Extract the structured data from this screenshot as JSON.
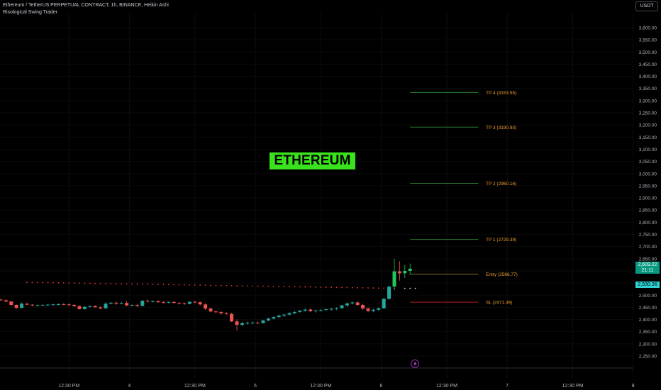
{
  "header": {
    "symbol_line": "Ethereum / TetherUS PERPETUAL CONTRACT, 1h, BINANCE, Heikin Ashi",
    "indicator": "Risological Swing Trader"
  },
  "currency_label": "USDT",
  "watermark": "ETHEREUM",
  "price_tags": {
    "last_price": "2,609.22",
    "countdown": "21:11",
    "secondary_price": "2,530.36"
  },
  "colors": {
    "background": "#000000",
    "bull": "#26a69a",
    "bull_bright": "#22c55e",
    "bear": "#ef5350",
    "target_line": "#2e7d32",
    "stop_line": "#b71c1c",
    "label_orange": "#f0a030",
    "watermark_bg": "#39e21d",
    "dots_red": "#e53935"
  },
  "bottom_icon": "lightning-icon",
  "chart_data": {
    "type": "candlestick",
    "title": "",
    "y_axis": {
      "ticks": [
        2250,
        2300,
        2350,
        2400,
        2450,
        2500,
        2550,
        2600,
        2650,
        2700,
        2750,
        2800,
        2850,
        2900,
        2950,
        3000,
        3050,
        3100,
        3150,
        3200,
        3250,
        3300,
        3350,
        3400,
        3450,
        3500,
        3550,
        3600
      ],
      "tick_labels": [
        "2,250.00",
        "2,300.00",
        "2,350.00",
        "2,400.00",
        "2,450.00",
        "2,500.00",
        "2,550.00",
        "2,600.00",
        "2,650.00",
        "2,700.00",
        "2,750.00",
        "2,800.00",
        "2,850.00",
        "2,900.00",
        "2,950.00",
        "3,000.00",
        "3,050.00",
        "3,100.00",
        "3,150.00",
        "3,200.00",
        "3,250.00",
        "3,300.00",
        "3,350.00",
        "3,400.00",
        "3,450.00",
        "3,500.00",
        "3,550.00",
        "3,600.00"
      ],
      "range": [
        2210,
        3640
      ]
    },
    "x_axis": {
      "tick_labels": [
        "12:30 PM",
        "4",
        "12:30 PM",
        "5",
        "12:30 PM",
        "6",
        "12:30 PM",
        "7",
        "12:30 PM",
        "8"
      ],
      "tick_hours": [
        -62,
        -50.5,
        -38,
        -26.5,
        -14,
        -2.5,
        10,
        21.5,
        34,
        45.5
      ]
    },
    "levels": [
      {
        "label": "TP 4 (3333.55)",
        "value": 3333.55,
        "kind": "target"
      },
      {
        "label": "TP 3 (3190.93)",
        "value": 3190.93,
        "kind": "target"
      },
      {
        "label": "TP 2 (2960.16)",
        "value": 2960.16,
        "kind": "target"
      },
      {
        "label": "TP 1 (2729.39)",
        "value": 2729.39,
        "kind": "target"
      },
      {
        "label": "Entry (2586.77)",
        "value": 2586.77,
        "kind": "entry"
      },
      {
        "label": "SL (2471.39)",
        "value": 2471.39,
        "kind": "stop"
      }
    ],
    "levels_start_hour": 3,
    "levels_end_hour": 16,
    "candles": [
      [
        2492,
        2494,
        2486,
        2490
      ],
      [
        2490,
        2493,
        2485,
        2488
      ],
      [
        2488,
        2491,
        2483,
        2486
      ],
      [
        2486,
        2489,
        2480,
        2484
      ],
      [
        2484,
        2487,
        2479,
        2482
      ],
      [
        2482,
        2485,
        2476,
        2479
      ],
      [
        2479,
        2482,
        2470,
        2474
      ],
      [
        2474,
        2476,
        2455,
        2460
      ],
      [
        2460,
        2462,
        2443,
        2448
      ],
      [
        2448,
        2470,
        2445,
        2465
      ],
      [
        2465,
        2468,
        2458,
        2461
      ],
      [
        2461,
        2464,
        2455,
        2458
      ],
      [
        2458,
        2462,
        2454,
        2459
      ],
      [
        2459,
        2463,
        2455,
        2460
      ],
      [
        2460,
        2464,
        2456,
        2461
      ],
      [
        2461,
        2465,
        2457,
        2462
      ],
      [
        2462,
        2466,
        2458,
        2463
      ],
      [
        2463,
        2467,
        2459,
        2462
      ],
      [
        2462,
        2466,
        2455,
        2460
      ],
      [
        2460,
        2463,
        2452,
        2455
      ],
      [
        2455,
        2458,
        2440,
        2443
      ],
      [
        2443,
        2455,
        2440,
        2452
      ],
      [
        2452,
        2458,
        2448,
        2455
      ],
      [
        2455,
        2459,
        2449,
        2450
      ],
      [
        2450,
        2454,
        2442,
        2446
      ],
      [
        2446,
        2470,
        2444,
        2465
      ],
      [
        2465,
        2472,
        2462,
        2469
      ],
      [
        2469,
        2474,
        2460,
        2465
      ],
      [
        2465,
        2472,
        2462,
        2468
      ],
      [
        2468,
        2476,
        2455,
        2458
      ],
      [
        2458,
        2462,
        2454,
        2460
      ],
      [
        2460,
        2464,
        2452,
        2456
      ],
      [
        2456,
        2480,
        2454,
        2477
      ],
      [
        2477,
        2482,
        2470,
        2474
      ],
      [
        2474,
        2478,
        2470,
        2475
      ],
      [
        2475,
        2479,
        2468,
        2471
      ],
      [
        2471,
        2476,
        2466,
        2470
      ],
      [
        2470,
        2474,
        2465,
        2472
      ],
      [
        2472,
        2476,
        2466,
        2468
      ],
      [
        2468,
        2472,
        2462,
        2466
      ],
      [
        2466,
        2470,
        2460,
        2464
      ],
      [
        2464,
        2475,
        2462,
        2473
      ],
      [
        2473,
        2477,
        2468,
        2471
      ],
      [
        2471,
        2474,
        2458,
        2462
      ],
      [
        2462,
        2466,
        2440,
        2445
      ],
      [
        2445,
        2449,
        2430,
        2433
      ],
      [
        2433,
        2437,
        2425,
        2431
      ],
      [
        2431,
        2434,
        2420,
        2426
      ],
      [
        2426,
        2430,
        2418,
        2423
      ],
      [
        2423,
        2427,
        2390,
        2392
      ],
      [
        2392,
        2400,
        2355,
        2378
      ],
      [
        2378,
        2390,
        2372,
        2385
      ],
      [
        2385,
        2392,
        2378,
        2386
      ],
      [
        2386,
        2392,
        2380,
        2387
      ],
      [
        2387,
        2392,
        2380,
        2385
      ],
      [
        2385,
        2399,
        2383,
        2396
      ],
      [
        2396,
        2407,
        2393,
        2404
      ],
      [
        2404,
        2414,
        2400,
        2410
      ],
      [
        2410,
        2420,
        2405,
        2416
      ],
      [
        2416,
        2424,
        2410,
        2420
      ],
      [
        2420,
        2430,
        2416,
        2426
      ],
      [
        2426,
        2435,
        2421,
        2431
      ],
      [
        2431,
        2440,
        2427,
        2436
      ],
      [
        2436,
        2445,
        2432,
        2441
      ],
      [
        2441,
        2445,
        2430,
        2434
      ],
      [
        2434,
        2440,
        2428,
        2437
      ],
      [
        2437,
        2443,
        2432,
        2439
      ],
      [
        2439,
        2445,
        2435,
        2442
      ],
      [
        2442,
        2448,
        2436,
        2444
      ],
      [
        2444,
        2450,
        2438,
        2447
      ],
      [
        2447,
        2460,
        2443,
        2458
      ],
      [
        2458,
        2470,
        2452,
        2466
      ],
      [
        2466,
        2475,
        2462,
        2470
      ],
      [
        2470,
        2475,
        2455,
        2460
      ],
      [
        2460,
        2465,
        2440,
        2445
      ],
      [
        2445,
        2450,
        2430,
        2435
      ],
      [
        2435,
        2445,
        2430,
        2440
      ],
      [
        2440,
        2450,
        2435,
        2446
      ],
      [
        2446,
        2490,
        2444,
        2485
      ],
      [
        2485,
        2540,
        2482,
        2535
      ],
      [
        2535,
        2650,
        2520,
        2598
      ],
      [
        2598,
        2640,
        2560,
        2590
      ],
      [
        2590,
        2625,
        2570,
        2600
      ],
      [
        2600,
        2630,
        2585,
        2609
      ]
    ],
    "dots_red": {
      "from_hour": -70,
      "to_hour": 0,
      "start_value": 2553,
      "end_value": 2528
    },
    "dots_white": {
      "hours": [
        2,
        3,
        4
      ],
      "value": 2528
    },
    "last_price": 2609.22,
    "secondary_price": 2530.36
  }
}
